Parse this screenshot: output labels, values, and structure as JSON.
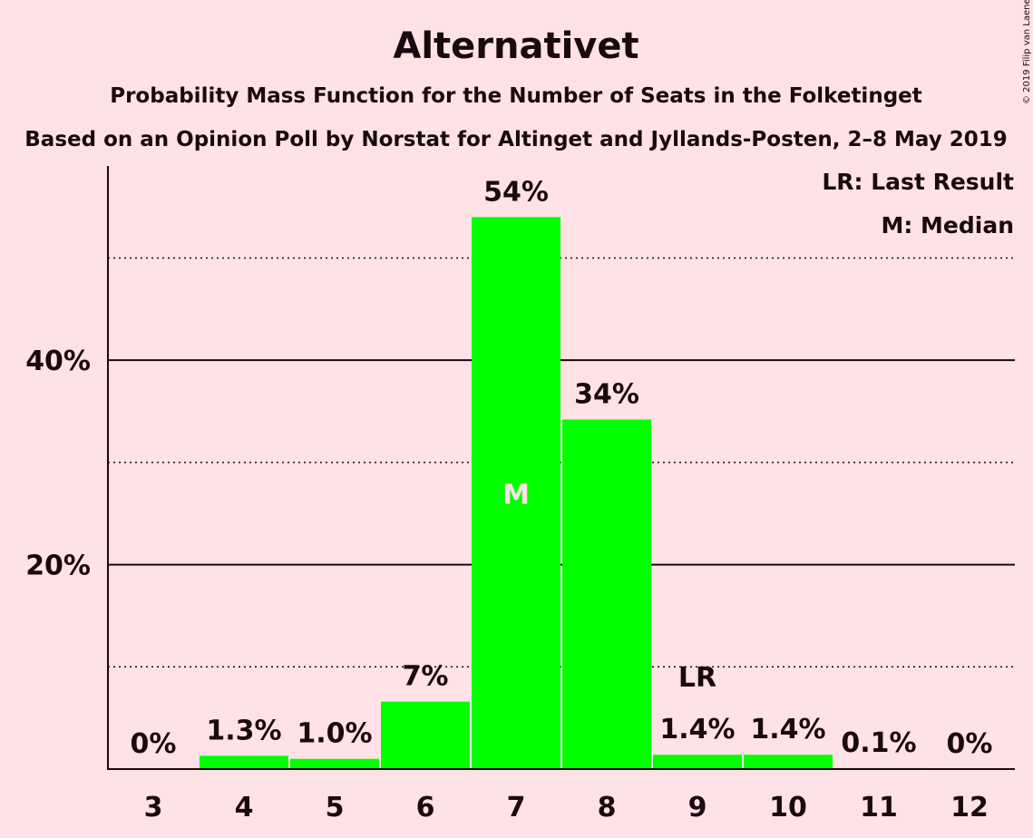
{
  "chart_data": {
    "type": "bar",
    "title": "Alternativet",
    "subtitle": "Probability Mass Function for the Number of Seats in the Folketinget",
    "subtitle2": "Based on an Opinion Poll by Norstat for Altinget and Jyllands-Posten, 2–8 May 2019",
    "categories": [
      "3",
      "4",
      "5",
      "6",
      "7",
      "8",
      "9",
      "10",
      "11",
      "12"
    ],
    "values": [
      0,
      1.3,
      1.0,
      6.6,
      54,
      34.2,
      1.4,
      1.4,
      0.1,
      0
    ],
    "data_labels": [
      "0%",
      "1.3%",
      "1.0%",
      "7%",
      "54%",
      "34%",
      "1.4%",
      "1.4%",
      "0.1%",
      "0%"
    ],
    "ylim": [
      0,
      59
    ],
    "yticks": [
      {
        "value": 20,
        "label": "20%"
      },
      {
        "value": 40,
        "label": "40%"
      }
    ],
    "minor_gridlines": [
      10,
      30,
      50
    ],
    "median_category": "7",
    "median_marker": "M",
    "last_result_category": "9",
    "last_result_marker": "LR",
    "legend": [
      "LR: Last Result",
      "M: Median"
    ],
    "legend_position": "top-right",
    "bar_color": "#00FF00",
    "copyright": "© 2019 Filip van Laenen"
  }
}
